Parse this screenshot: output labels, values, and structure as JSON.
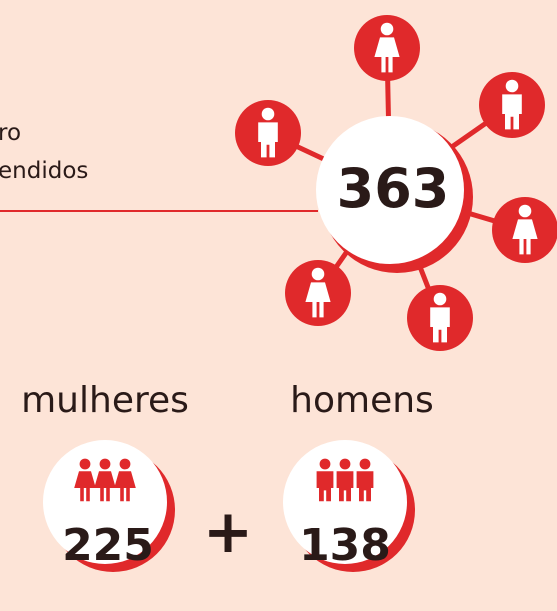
{
  "header": {
    "lines": [
      "ro",
      "endidos"
    ]
  },
  "total": 363,
  "groups": [
    {
      "label": "mulheres",
      "value": 225
    },
    {
      "label": "homens",
      "value": 138
    }
  ],
  "operator": "+"
}
